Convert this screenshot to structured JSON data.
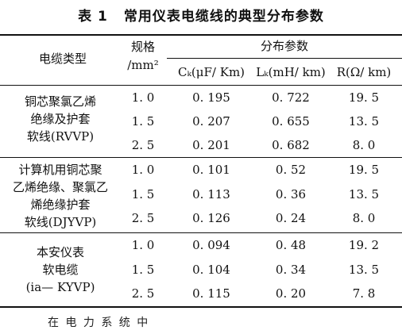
{
  "caption": {
    "number": "表 1",
    "title": "常用仪表电缆线的典型分布参数"
  },
  "header": {
    "type": "电缆类型",
    "spec_line1": "规格",
    "spec_line2": "/mm²",
    "distribution": "分布参数",
    "c": "Cₖ(μF/ Km)",
    "l": "Lₖ(mH/ km)",
    "r": "R(Ω/ km)"
  },
  "groups": [
    {
      "name_lines": [
        "铜芯聚氯乙烯",
        "绝缘及护套",
        "软线(RVVP)"
      ],
      "rows": [
        {
          "spec": "1. 0",
          "c": "0. 195",
          "l": "0. 722",
          "r": "19. 5"
        },
        {
          "spec": "1. 5",
          "c": "0. 207",
          "l": "0. 655",
          "r": "13. 5"
        },
        {
          "spec": "2. 5",
          "c": "0. 201",
          "l": "0. 682",
          "r": "8. 0"
        }
      ]
    },
    {
      "name_lines": [
        "计算机用铜芯聚",
        "乙烯绝缘、聚氯乙",
        "烯绝缘护套",
        "软线(DJYVP)"
      ],
      "rows": [
        {
          "spec": "1. 0",
          "c": "0. 101",
          "l": "0. 52",
          "r": "19. 5"
        },
        {
          "spec": "1. 5",
          "c": "0. 113",
          "l": "0. 36",
          "r": "13. 5"
        },
        {
          "spec": "2. 5",
          "c": "0. 126",
          "l": "0. 24",
          "r": "8. 0"
        }
      ]
    },
    {
      "name_lines": [
        "本安仪表",
        "软电缆",
        "(ia— KYVP)"
      ],
      "rows": [
        {
          "spec": "1. 0",
          "c": "0. 094",
          "l": "0. 48",
          "r": "19. 2"
        },
        {
          "spec": "1. 5",
          "c": "0. 104",
          "l": "0. 34",
          "r": "13. 5"
        },
        {
          "spec": "2. 5",
          "c": "0. 115",
          "l": "0. 20",
          "r": "7. 8"
        }
      ]
    }
  ],
  "footer": "在 电 力 系 统 中"
}
